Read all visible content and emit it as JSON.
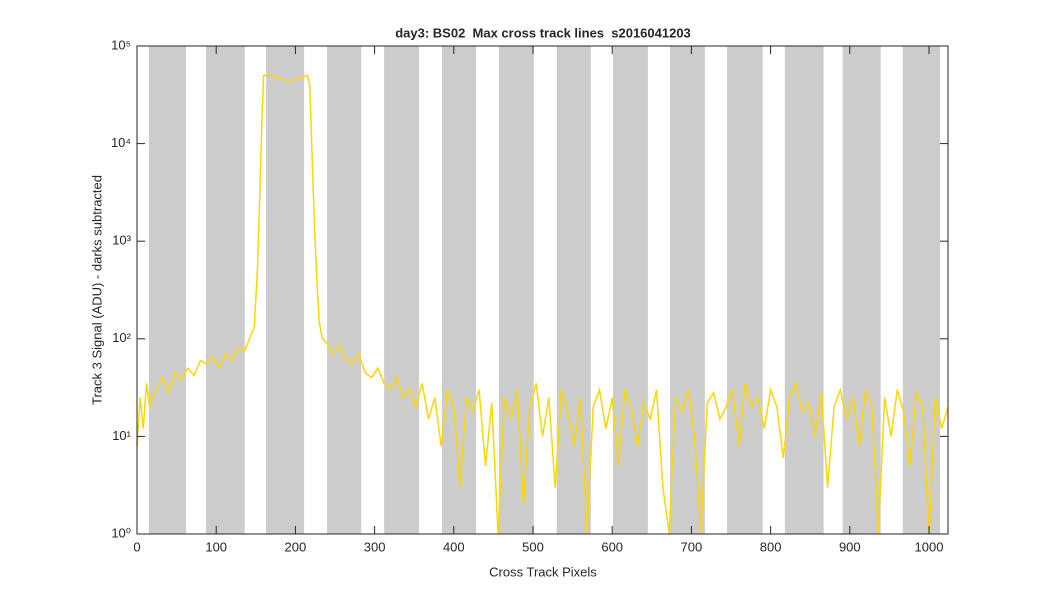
{
  "chart_data": {
    "type": "line",
    "title": "day3: BS02  Max cross track lines  s2016041203",
    "x_label": "Cross Track Pixels",
    "y_label": "Track 3 Signal (ADU) - darks subtracted",
    "xlim": [
      0,
      1024
    ],
    "xticks": [
      0,
      100,
      200,
      300,
      400,
      500,
      600,
      700,
      800,
      900,
      1000
    ],
    "ylim": [
      1,
      100000
    ],
    "log_y": true,
    "yticks": [
      {
        "value": 1,
        "label": "10⁰"
      },
      {
        "value": 10,
        "label": "10¹"
      },
      {
        "value": 100,
        "label": "10²"
      },
      {
        "value": 1000,
        "label": "10³"
      },
      {
        "value": 10000,
        "label": "10⁴"
      },
      {
        "value": 100000,
        "label": "10⁵"
      }
    ],
    "band_color": "#cccccc",
    "bands": [
      [
        15,
        62
      ],
      [
        87,
        136
      ],
      [
        163,
        211
      ],
      [
        240,
        283
      ],
      [
        312,
        356
      ],
      [
        385,
        428
      ],
      [
        457,
        501
      ],
      [
        530,
        573
      ],
      [
        601,
        645
      ],
      [
        673,
        717
      ],
      [
        745,
        790
      ],
      [
        818,
        867
      ],
      [
        891,
        939
      ],
      [
        967,
        1014
      ]
    ],
    "series": [
      {
        "color": "#ffd700",
        "x": [
          0,
          4,
          8,
          12,
          16,
          24,
          32,
          40,
          48,
          56,
          64,
          72,
          80,
          88,
          96,
          104,
          112,
          120,
          128,
          136,
          144,
          148,
          152,
          155,
          158,
          160,
          170,
          180,
          190,
          200,
          210,
          215,
          218,
          221,
          224,
          227,
          230,
          234,
          240,
          248,
          256,
          264,
          272,
          280,
          288,
          296,
          304,
          312,
          320,
          328,
          336,
          344,
          352,
          360,
          368,
          376,
          384,
          392,
          400,
          408,
          416,
          424,
          432,
          440,
          448,
          456,
          464,
          472,
          480,
          488,
          496,
          504,
          512,
          520,
          528,
          536,
          544,
          552,
          560,
          568,
          576,
          584,
          592,
          600,
          608,
          616,
          624,
          632,
          640,
          648,
          656,
          664,
          672,
          680,
          688,
          696,
          704,
          712,
          720,
          728,
          736,
          744,
          752,
          760,
          768,
          776,
          784,
          792,
          800,
          808,
          816,
          824,
          832,
          840,
          848,
          856,
          864,
          872,
          880,
          888,
          896,
          904,
          912,
          920,
          928,
          936,
          944,
          952,
          960,
          968,
          976,
          984,
          992,
          1000,
          1008,
          1016,
          1024
        ],
        "values": [
          8,
          25,
          12,
          35,
          20,
          30,
          40,
          28,
          45,
          38,
          50,
          42,
          60,
          55,
          65,
          50,
          70,
          60,
          80,
          75,
          110,
          130,
          500,
          3000,
          20000,
          50000,
          50000,
          46000,
          44000,
          45000,
          48000,
          50000,
          40000,
          8000,
          1500,
          400,
          150,
          100,
          90,
          70,
          85,
          60,
          55,
          70,
          45,
          40,
          50,
          35,
          30,
          40,
          25,
          30,
          20,
          35,
          15,
          25,
          8,
          30,
          20,
          3,
          25,
          18,
          30,
          5,
          22,
          1,
          25,
          15,
          30,
          2,
          20,
          35,
          10,
          25,
          3,
          30,
          18,
          8,
          25,
          1,
          20,
          30,
          12,
          25,
          5,
          30,
          20,
          8,
          22,
          15,
          30,
          3,
          1,
          25,
          18,
          30,
          10,
          1,
          22,
          28,
          15,
          20,
          30,
          8,
          35,
          20,
          25,
          12,
          30,
          20,
          6,
          25,
          35,
          18,
          22,
          10,
          28,
          3,
          20,
          30,
          15,
          25,
          8,
          30,
          20,
          1,
          25,
          10,
          30,
          18,
          5,
          28,
          20,
          1,
          25,
          12,
          20
        ]
      }
    ]
  }
}
